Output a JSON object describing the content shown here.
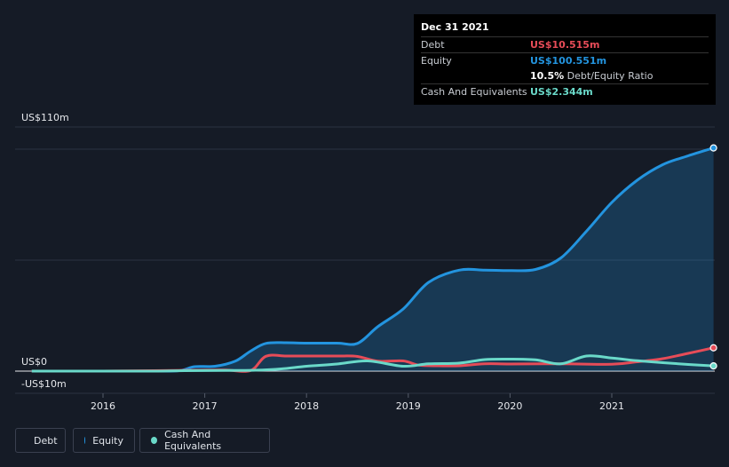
{
  "tooltip": {
    "date": "Dec 31 2021",
    "debt_label": "Debt",
    "debt_value": "US$10.515m",
    "equity_label": "Equity",
    "equity_value": "US$100.551m",
    "ratio_value": "10.5%",
    "ratio_label": "Debt/Equity Ratio",
    "cash_label": "Cash And Equivalents",
    "cash_value": "US$2.344m"
  },
  "legend": {
    "debt": "Debt",
    "equity": "Equity",
    "cash": "Cash And Equivalents"
  },
  "colors": {
    "debt": "#e64c58",
    "equity": "#2394df",
    "cash": "#6ad9c9",
    "background": "#151b26"
  },
  "chart_data": {
    "type": "line",
    "title": "",
    "xlabel": "",
    "ylabel": "",
    "y_tick_labels": [
      "US$110m",
      "US$0",
      "-US$10m"
    ],
    "x_tick_labels": [
      "2016",
      "2017",
      "2018",
      "2019",
      "2020",
      "2021"
    ],
    "ylim": [
      -10,
      110
    ],
    "xlim": [
      2015.3,
      2022.0
    ],
    "series": [
      {
        "name": "Equity",
        "x": [
          2015.3,
          2016.0,
          2016.5,
          2016.75,
          2016.9,
          2017.1,
          2017.3,
          2017.45,
          2017.6,
          2017.8,
          2018.0,
          2018.3,
          2018.5,
          2018.7,
          2018.95,
          2019.2,
          2019.5,
          2019.75,
          2020.0,
          2020.25,
          2020.5,
          2020.75,
          2021.0,
          2021.25,
          2021.5,
          2021.75,
          2022.0
        ],
        "values": [
          0,
          0,
          0,
          0.2,
          2.0,
          2.2,
          4.5,
          9.0,
          12.5,
          12.8,
          12.6,
          12.6,
          12.5,
          20.0,
          28.0,
          40.0,
          45.5,
          45.5,
          45.3,
          45.8,
          51.0,
          63.0,
          76.0,
          86.0,
          93.0,
          97.0,
          100.551
        ]
      },
      {
        "name": "Debt",
        "x": [
          2015.3,
          2016.0,
          2016.5,
          2016.9,
          2017.2,
          2017.45,
          2017.6,
          2017.8,
          2018.0,
          2018.3,
          2018.5,
          2018.7,
          2018.95,
          2019.1,
          2019.3,
          2019.5,
          2019.75,
          2020.0,
          2020.5,
          2021.0,
          2021.25,
          2021.5,
          2021.75,
          2022.0
        ],
        "values": [
          0,
          0,
          0.2,
          0.4,
          0.5,
          0.3,
          6.7,
          6.8,
          6.8,
          6.8,
          6.6,
          4.5,
          4.6,
          2.7,
          2.4,
          2.4,
          3.3,
          3.2,
          3.3,
          3.1,
          4.2,
          5.6,
          8.0,
          10.515
        ]
      },
      {
        "name": "Cash And Equivalents",
        "x": [
          2015.3,
          2016.0,
          2016.5,
          2016.8,
          2017.2,
          2017.5,
          2017.75,
          2018.0,
          2018.3,
          2018.6,
          2018.95,
          2019.2,
          2019.5,
          2019.75,
          2020.0,
          2020.25,
          2020.5,
          2020.75,
          2021.0,
          2021.25,
          2021.5,
          2021.75,
          2022.0
        ],
        "values": [
          0,
          0,
          0,
          0.2,
          0.3,
          0.4,
          1.0,
          2.2,
          3.2,
          4.6,
          2.2,
          3.3,
          3.6,
          5.2,
          5.4,
          5.1,
          3.3,
          6.8,
          5.9,
          4.7,
          3.8,
          3.0,
          2.344
        ]
      }
    ],
    "grid": true,
    "legend_position": "bottom-left"
  }
}
